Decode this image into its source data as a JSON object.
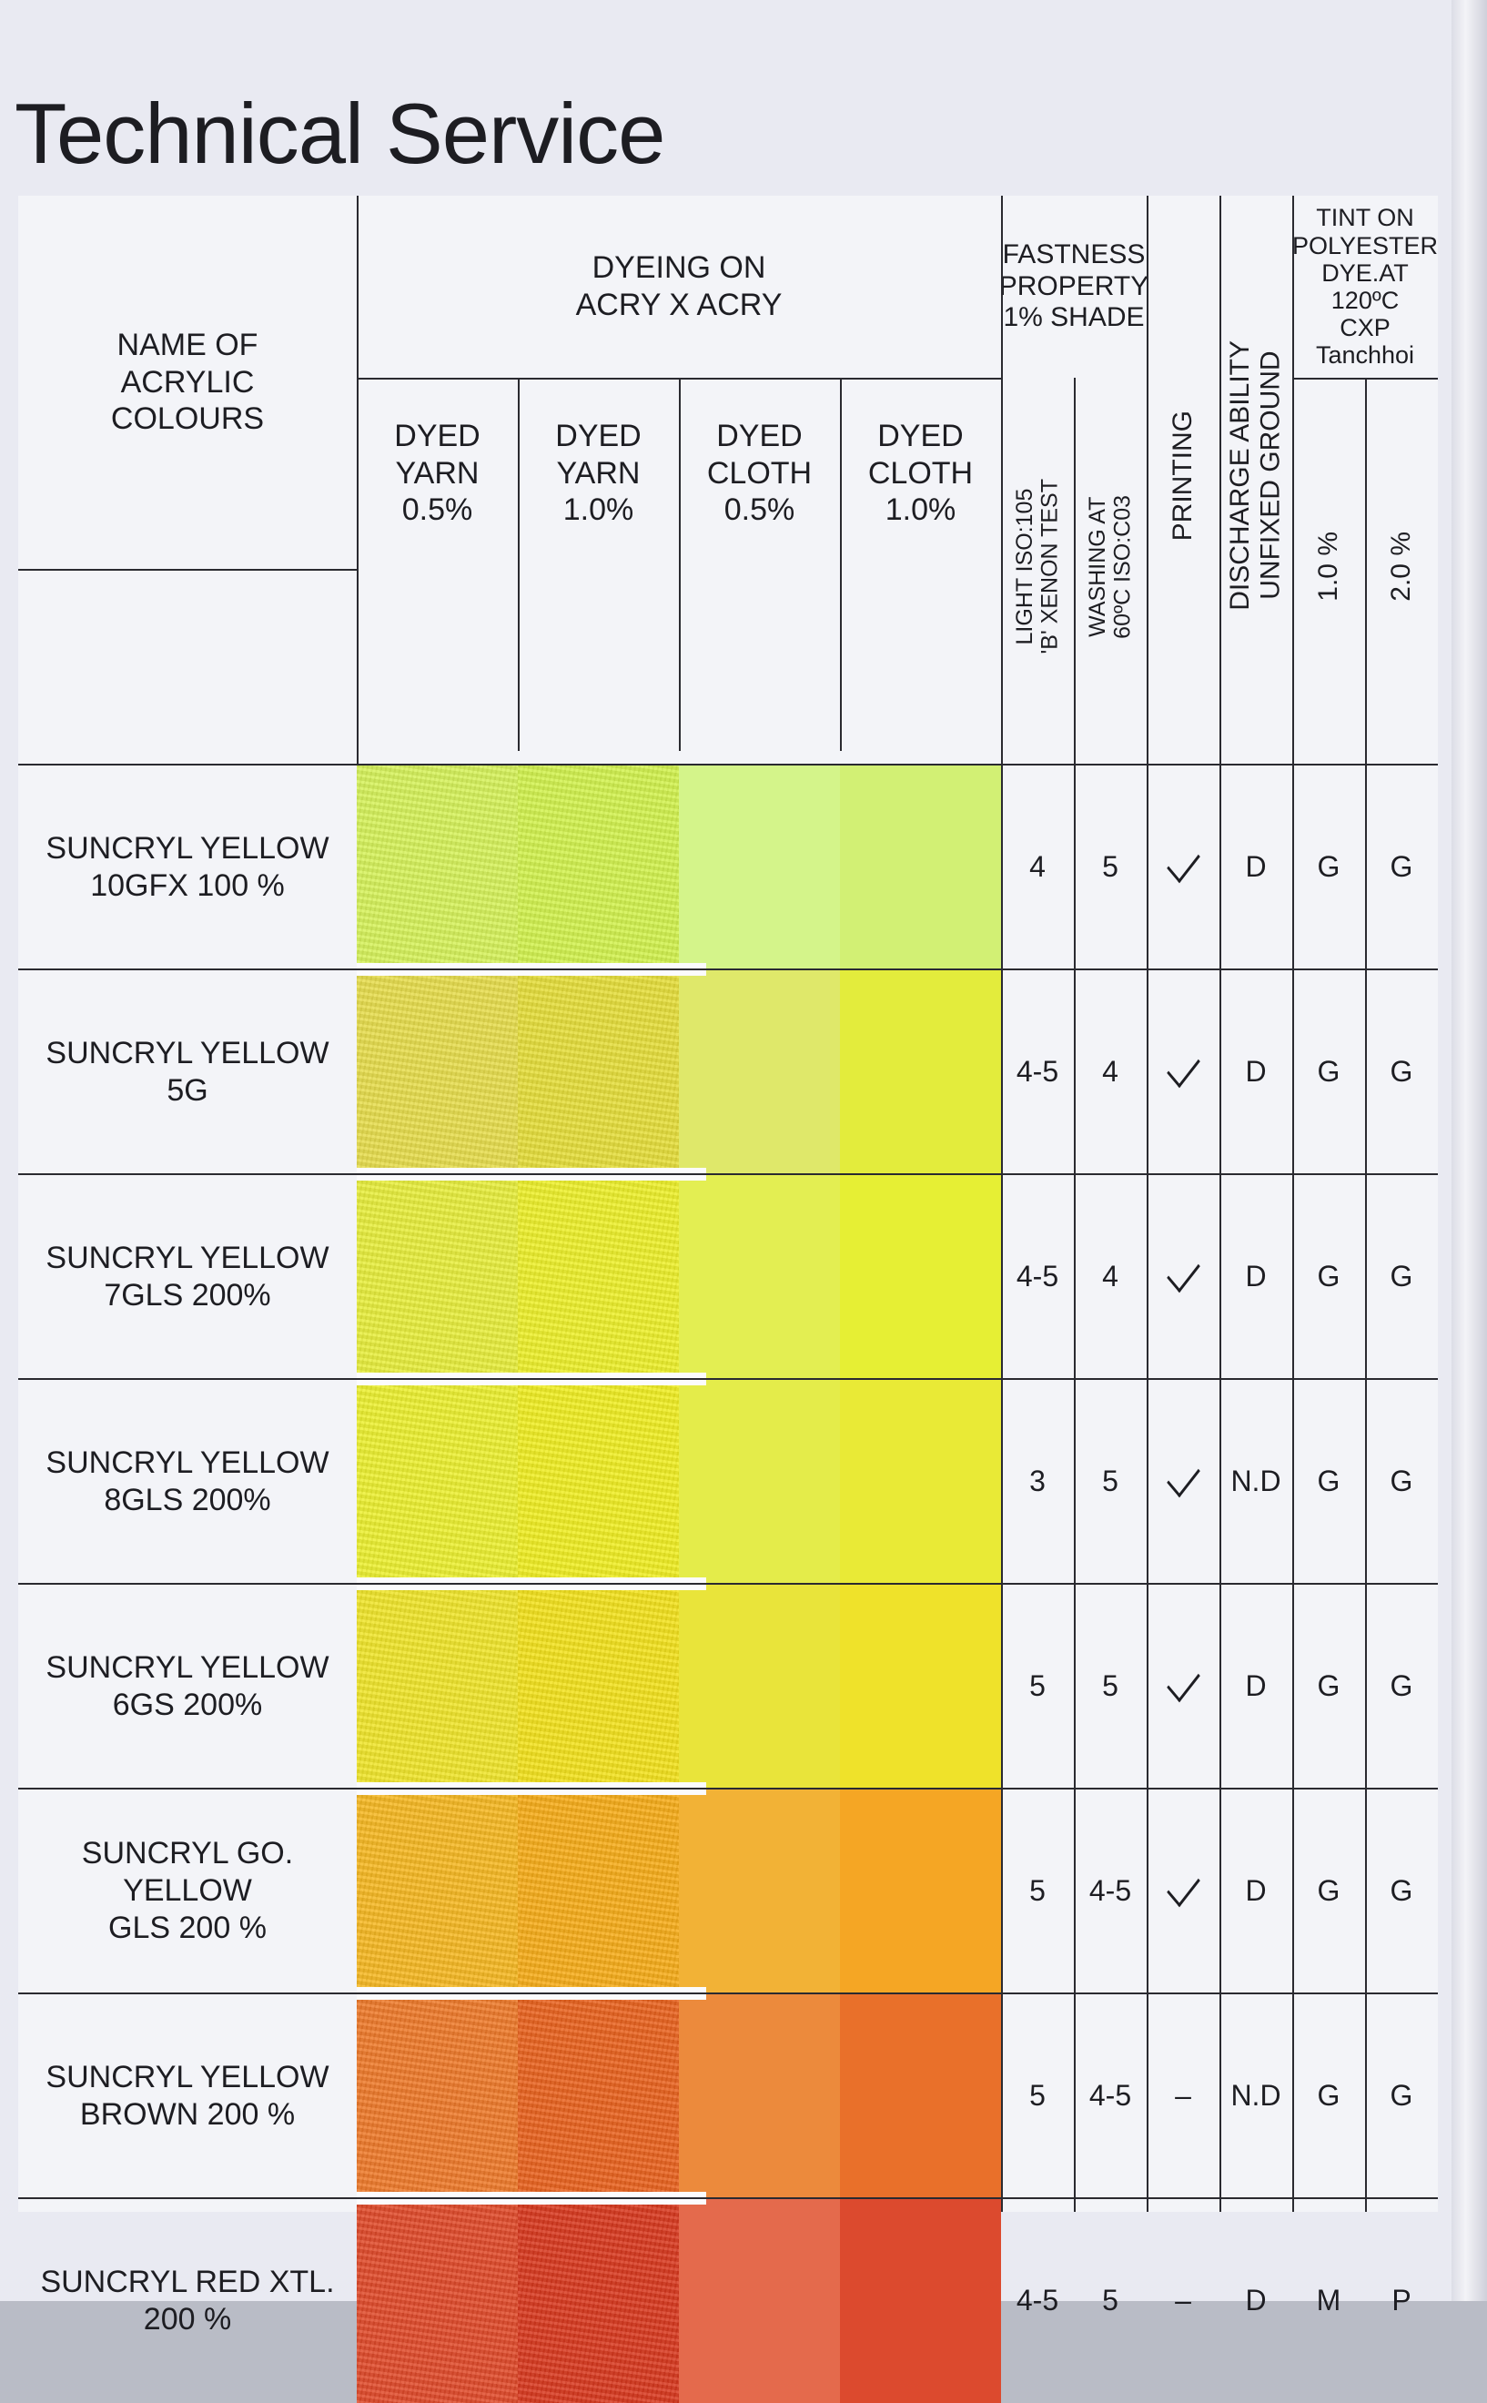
{
  "title": "Technical Service",
  "headers": {
    "name": "NAME OF\nACRYLIC\nCOLOURS",
    "dyeing": "DYEING ON\nACRY X ACRY",
    "dyed_yarn_05": "DYED\nYARN\n0.5%",
    "dyed_yarn_10": "DYED\nYARN\n1.0%",
    "dyed_cloth_05": "DYED\nCLOTH\n0.5%",
    "dyed_cloth_10": "DYED\nCLOTH\n1.0%",
    "fastness": "FASTNESS\nPROPERTY\n1% SHADE",
    "light": "LIGHT ISO:105\n'B' XENON TEST",
    "washing": "WASHING AT\n60ºC ISO:C03",
    "printing": "PRINTING",
    "discharge": "DISCHARGE ABILITY\nUNFIXED GROUND",
    "tint": "TINT ON\nPOLYESTER\nDYE.AT 120ºC\nCXP Tanchhoi",
    "tint_10": "1.0 %",
    "tint_20": "2.0 %"
  },
  "rows": [
    {
      "name": "SUNCRYL YELLOW\n10GFX 100 %",
      "light": "4",
      "washing": "5",
      "printing": "check",
      "printing_text": "",
      "discharge": "D",
      "tint_10": "G",
      "tint_20": "G",
      "colors": {
        "yarn_05": "#d6f25a",
        "yarn_10": "#d2f24e",
        "cloth_05": "#d4f48a",
        "cloth_10": "#d2f074"
      }
    },
    {
      "name": "SUNCRYL YELLOW\n5G",
      "light": "4-5",
      "washing": "4",
      "printing": "check",
      "printing_text": "",
      "discharge": "D",
      "tint_10": "G",
      "tint_20": "G",
      "colors": {
        "yarn_05": "#e7dd4c",
        "yarn_10": "#e6de3a",
        "cloth_05": "#dfe86a",
        "cloth_10": "#e3ec3c"
      }
    },
    {
      "name": "SUNCRYL YELLOW\n7GLS 200%",
      "light": "4-5",
      "washing": "4",
      "printing": "check",
      "printing_text": "",
      "discharge": "D",
      "tint_10": "G",
      "tint_20": "G",
      "colors": {
        "yarn_05": "#e8ee3c",
        "yarn_10": "#edf02a",
        "cloth_05": "#e3ee52",
        "cloth_10": "#e6ef34"
      }
    },
    {
      "name": "SUNCRYL YELLOW\n8GLS 200%",
      "light": "3",
      "washing": "5",
      "printing": "check",
      "printing_text": "",
      "discharge": "N.D",
      "tint_10": "G",
      "tint_20": "G",
      "colors": {
        "yarn_05": "#ecf030",
        "yarn_10": "#f0ee22",
        "cloth_05": "#e4ec4a",
        "cloth_10": "#e9ea36"
      }
    },
    {
      "name": "SUNCRYL YELLOW\n6GS 200%",
      "light": "5",
      "washing": "5",
      "printing": "check",
      "printing_text": "",
      "discharge": "D",
      "tint_10": "G",
      "tint_20": "G",
      "colors": {
        "yarn_05": "#f0e62a",
        "yarn_10": "#f3e21c",
        "cloth_05": "#e9e43a",
        "cloth_10": "#efe22a"
      }
    },
    {
      "name": "SUNCRYL GO. YELLOW\nGLS 200 %",
      "light": "5",
      "washing": "4-5",
      "printing": "check",
      "printing_text": "",
      "discharge": "D",
      "tint_10": "G",
      "tint_20": "G",
      "colors": {
        "yarn_05": "#f6b822",
        "yarn_10": "#f7ac18",
        "cloth_05": "#f2b236",
        "cloth_10": "#f5a624"
      }
    },
    {
      "name": "SUNCRYL YELLOW\nBROWN 200 %",
      "light": "5",
      "washing": "4-5",
      "printing": "dash",
      "printing_text": "–",
      "discharge": "N.D",
      "tint_10": "G",
      "tint_20": "G",
      "colors": {
        "yarn_05": "#ee7a2a",
        "yarn_10": "#e9621e",
        "cloth_05": "#ec8a3c",
        "cloth_10": "#e9702a"
      }
    },
    {
      "name": "SUNCRYL RED XTL.\n200 %",
      "light": "4-5",
      "washing": "5",
      "printing": "dash",
      "printing_text": "–",
      "discharge": "D",
      "tint_10": "M",
      "tint_20": "P",
      "colors": {
        "yarn_05": "#e04a2a",
        "yarn_10": "#d8381e",
        "cloth_05": "#e46a4c",
        "cloth_10": "#dc4a2e"
      }
    }
  ]
}
